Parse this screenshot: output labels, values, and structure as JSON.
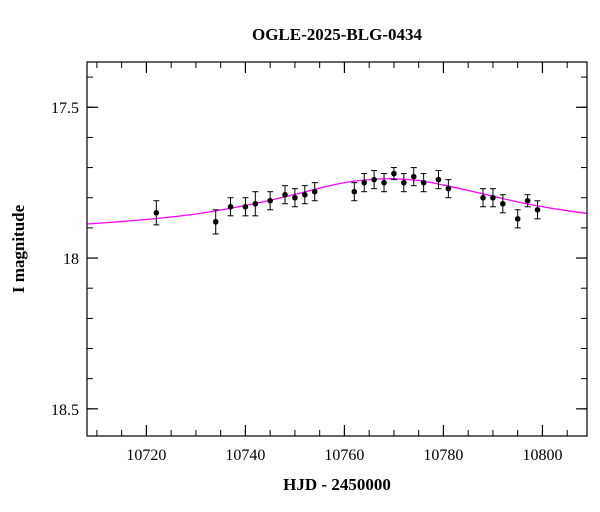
{
  "chart_data": {
    "type": "scatter",
    "title": "OGLE-2025-BLG-0434",
    "xlabel": "HJD - 2450000",
    "ylabel": "I magnitude",
    "xlim": [
      10708,
      10809
    ],
    "ylim": [
      18.59,
      17.35
    ],
    "y_inverted": true,
    "x_ticks": [
      10720,
      10740,
      10760,
      10780,
      10800
    ],
    "x_tick_labels": [
      "10720",
      "10740",
      "10760",
      "10780",
      "10800"
    ],
    "x_minor_step": 5,
    "y_ticks": [
      17.5,
      18,
      18.5
    ],
    "y_tick_labels": [
      "17.5",
      "18",
      "18.5"
    ],
    "y_minor_step": 0.1,
    "grid": false,
    "series": [
      {
        "kind": "points_with_errorbars",
        "color": "#000000",
        "points": [
          {
            "x": 10722.0,
            "y": 17.85,
            "err": 0.04
          },
          {
            "x": 10734.0,
            "y": 17.88,
            "err": 0.04
          },
          {
            "x": 10737.0,
            "y": 17.83,
            "err": 0.03
          },
          {
            "x": 10740.0,
            "y": 17.83,
            "err": 0.03
          },
          {
            "x": 10742.0,
            "y": 17.82,
            "err": 0.04
          },
          {
            "x": 10745.0,
            "y": 17.81,
            "err": 0.03
          },
          {
            "x": 10748.0,
            "y": 17.79,
            "err": 0.03
          },
          {
            "x": 10750.0,
            "y": 17.8,
            "err": 0.03
          },
          {
            "x": 10752.0,
            "y": 17.79,
            "err": 0.03
          },
          {
            "x": 10754.0,
            "y": 17.78,
            "err": 0.03
          },
          {
            "x": 10762.0,
            "y": 17.78,
            "err": 0.03
          },
          {
            "x": 10764.0,
            "y": 17.75,
            "err": 0.03
          },
          {
            "x": 10766.0,
            "y": 17.74,
            "err": 0.03
          },
          {
            "x": 10768.0,
            "y": 17.75,
            "err": 0.03
          },
          {
            "x": 10770.0,
            "y": 17.72,
            "err": 0.02
          },
          {
            "x": 10772.0,
            "y": 17.75,
            "err": 0.03
          },
          {
            "x": 10774.0,
            "y": 17.73,
            "err": 0.03
          },
          {
            "x": 10776.0,
            "y": 17.75,
            "err": 0.03
          },
          {
            "x": 10779.0,
            "y": 17.74,
            "err": 0.03
          },
          {
            "x": 10781.0,
            "y": 17.77,
            "err": 0.03
          },
          {
            "x": 10788.0,
            "y": 17.8,
            "err": 0.03
          },
          {
            "x": 10790.0,
            "y": 17.8,
            "err": 0.03
          },
          {
            "x": 10792.0,
            "y": 17.82,
            "err": 0.03
          },
          {
            "x": 10795.0,
            "y": 17.87,
            "err": 0.03
          },
          {
            "x": 10797.0,
            "y": 17.81,
            "err": 0.02
          },
          {
            "x": 10799.0,
            "y": 17.84,
            "err": 0.03
          }
        ]
      },
      {
        "kind": "model_curve",
        "color": "#ff00ff",
        "points": [
          {
            "x": 10708,
            "y": 17.887
          },
          {
            "x": 10715,
            "y": 17.879
          },
          {
            "x": 10722,
            "y": 17.869
          },
          {
            "x": 10730,
            "y": 17.854
          },
          {
            "x": 10737,
            "y": 17.835
          },
          {
            "x": 10744,
            "y": 17.812
          },
          {
            "x": 10750,
            "y": 17.789
          },
          {
            "x": 10755,
            "y": 17.768
          },
          {
            "x": 10760,
            "y": 17.75
          },
          {
            "x": 10765,
            "y": 17.74
          },
          {
            "x": 10770,
            "y": 17.737
          },
          {
            "x": 10775,
            "y": 17.743
          },
          {
            "x": 10780,
            "y": 17.758
          },
          {
            "x": 10785,
            "y": 17.776
          },
          {
            "x": 10790,
            "y": 17.795
          },
          {
            "x": 10795,
            "y": 17.814
          },
          {
            "x": 10800,
            "y": 17.83
          },
          {
            "x": 10805,
            "y": 17.843
          },
          {
            "x": 10809,
            "y": 17.852
          }
        ]
      }
    ]
  }
}
